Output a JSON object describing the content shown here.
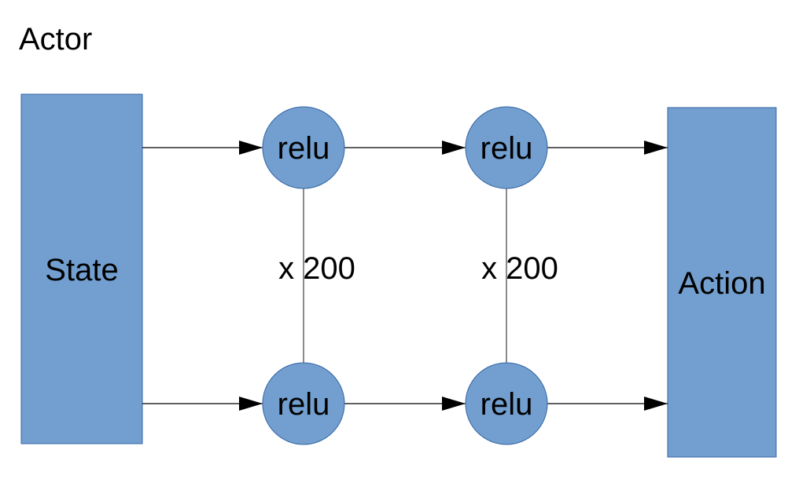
{
  "title": "Actor",
  "colors": {
    "fill": "#729fcf",
    "stroke": "#3465a4",
    "line": "#000000",
    "connector": "#3c3c3c",
    "text": "#000000"
  },
  "input": {
    "label": "State"
  },
  "output": {
    "label": "Action"
  },
  "layers": [
    {
      "top_neuron": "relu",
      "bottom_neuron": "relu",
      "count_label": "x 200"
    },
    {
      "top_neuron": "relu",
      "bottom_neuron": "relu",
      "count_label": "x 200"
    }
  ]
}
